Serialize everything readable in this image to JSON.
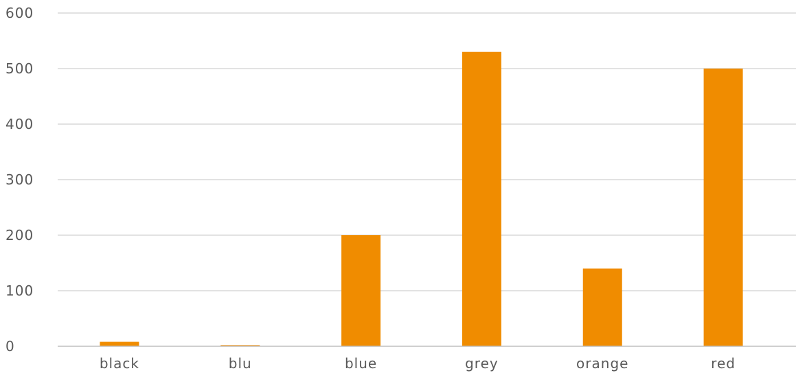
{
  "chart_data": {
    "type": "bar",
    "title": "",
    "xlabel": "",
    "ylabel": "",
    "categories": [
      "black",
      "blu",
      "blue",
      "grey",
      "orange",
      "red"
    ],
    "values": [
      8,
      2,
      200,
      530,
      140,
      500
    ],
    "ylim": [
      0,
      600
    ],
    "yticks": [
      "0",
      "100",
      "200",
      "300",
      "400",
      "500",
      "600"
    ],
    "grid": true,
    "legend": "none",
    "bar_color": "#F08C00"
  }
}
